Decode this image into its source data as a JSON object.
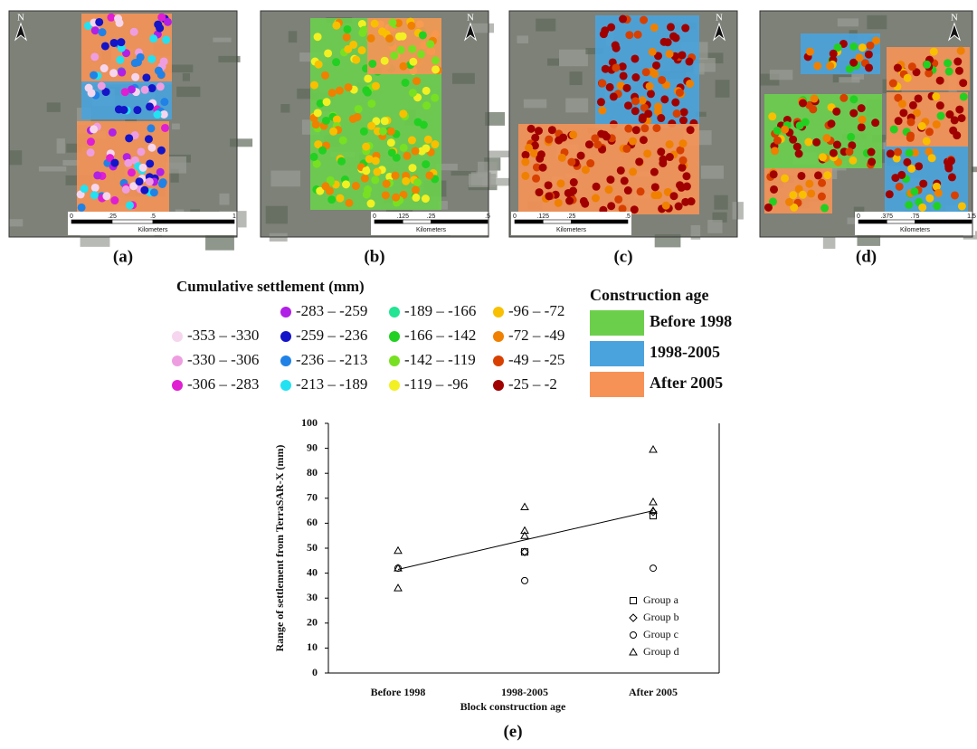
{
  "panels": [
    {
      "label": "(a)",
      "north": "N",
      "scale_ticks": [
        "0",
        ".25",
        ".5",
        "1"
      ],
      "scale_unit": "Kilometers"
    },
    {
      "label": "(b)",
      "north": "N",
      "scale_ticks": [
        "0",
        ".125",
        ".25",
        ".5"
      ],
      "scale_unit": "Kilometers"
    },
    {
      "label": "(c)",
      "north": "N",
      "scale_ticks": [
        "0",
        ".125",
        ".25",
        ".5"
      ],
      "scale_unit": "Kilometers"
    },
    {
      "label": "(d)",
      "north": "N",
      "scale_ticks": [
        "0",
        ".375",
        ".75",
        "1.5"
      ],
      "scale_unit": "Kilometers"
    }
  ],
  "settlement_legend": {
    "title": "Cumulative settlement (mm)",
    "items": [
      {
        "label": "-353 – -330",
        "color": "#f6d6ee"
      },
      {
        "label": "-330 – -306",
        "color": "#ee9ee0"
      },
      {
        "label": "-306 – -283",
        "color": "#e01ed2"
      },
      {
        "label": "-283 – -259",
        "color": "#b020e6"
      },
      {
        "label": "-259 – -236",
        "color": "#1414c8"
      },
      {
        "label": "-236 – -213",
        "color": "#2082e6"
      },
      {
        "label": "-213 – -189",
        "color": "#22e2f2"
      },
      {
        "label": "-189 – -166",
        "color": "#22e492"
      },
      {
        "label": "-166 – -142",
        "color": "#22d022"
      },
      {
        "label": "-142 – -119",
        "color": "#78e022"
      },
      {
        "label": "-119 – -96",
        "color": "#f2f022"
      },
      {
        "label": "-96 – -72",
        "color": "#f8c000"
      },
      {
        "label": "-72 – -49",
        "color": "#f08000"
      },
      {
        "label": "-49 – -25",
        "color": "#d84000"
      },
      {
        "label": "-25 – -2",
        "color": "#a00000"
      }
    ]
  },
  "construction_age": {
    "title": "Construction age",
    "items": [
      {
        "label": "Before 1998",
        "color": "#6ccf4c"
      },
      {
        "label": "1998-2005",
        "color": "#4aa3dc"
      },
      {
        "label": "After 2005",
        "color": "#f79256"
      }
    ]
  },
  "chart_data": {
    "type": "scatter",
    "label": "(e)",
    "x_label": "Block construction age",
    "y_label": "Range of settlement from TerraSAR-X (mm)",
    "categories": [
      "Before 1998",
      "1998-2005",
      "After 2005"
    ],
    "ylim": [
      0,
      100
    ],
    "yticks": [
      0,
      10,
      20,
      30,
      40,
      50,
      60,
      70,
      80,
      90,
      100
    ],
    "trend_values": [
      41.5,
      53.3,
      65
    ],
    "series": [
      {
        "name": "Group a",
        "marker": "square",
        "x": [
          "1998-2005",
          "After 2005"
        ],
        "values": [
          48.5,
          63
        ]
      },
      {
        "name": "Group b",
        "marker": "diamond",
        "x": [
          "1998-2005",
          "After 2005"
        ],
        "values": [
          48.5,
          64.5
        ]
      },
      {
        "name": "Group c",
        "marker": "circle",
        "x": [
          "Before 1998",
          "1998-2005",
          "After 2005"
        ],
        "values": [
          42,
          37,
          42
        ]
      },
      {
        "name": "Group d",
        "marker": "triangle",
        "x": [
          "Before 1998",
          "Before 1998",
          "Before 1998",
          "1998-2005",
          "1998-2005",
          "1998-2005",
          "After 2005",
          "After 2005",
          "After 2005"
        ],
        "values": [
          49,
          42,
          34,
          66.5,
          57,
          55,
          89.5,
          68.5,
          65
        ]
      }
    ]
  }
}
